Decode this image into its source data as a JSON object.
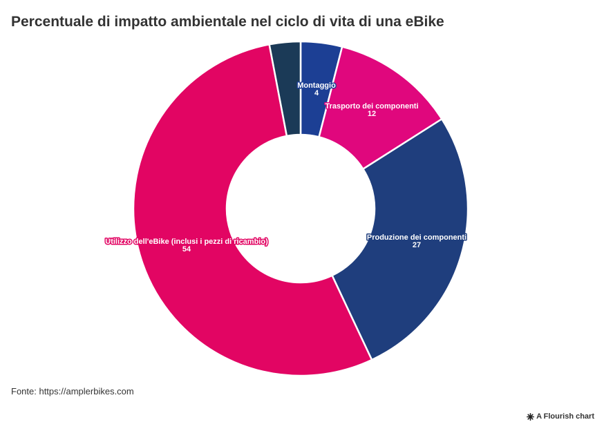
{
  "header": {
    "title": "Percentuale di impatto ambientale nel ciclo di vita di una eBike"
  },
  "footer": {
    "source": "Fonte: https://amplerbikes.com",
    "credit": "A Flourish chart"
  },
  "chart_data": {
    "type": "pie",
    "variant": "donut",
    "title": "Percentuale di impatto ambientale nel ciclo di vita di una eBike",
    "slices": [
      {
        "label": "Montaggio",
        "value": 4,
        "color": "#1c3f94"
      },
      {
        "label": "Trasporto dei componenti",
        "value": 12,
        "color": "#e0077d"
      },
      {
        "label": "Produzione dei componenti",
        "value": 27,
        "color": "#1f3e7d"
      },
      {
        "label": "Utilizzo dell'eBike (inclusi i pezzi di ricambio)",
        "value": 54,
        "color": "#e20563"
      },
      {
        "label": "",
        "value": 3,
        "color": "#1b3a57"
      }
    ]
  }
}
